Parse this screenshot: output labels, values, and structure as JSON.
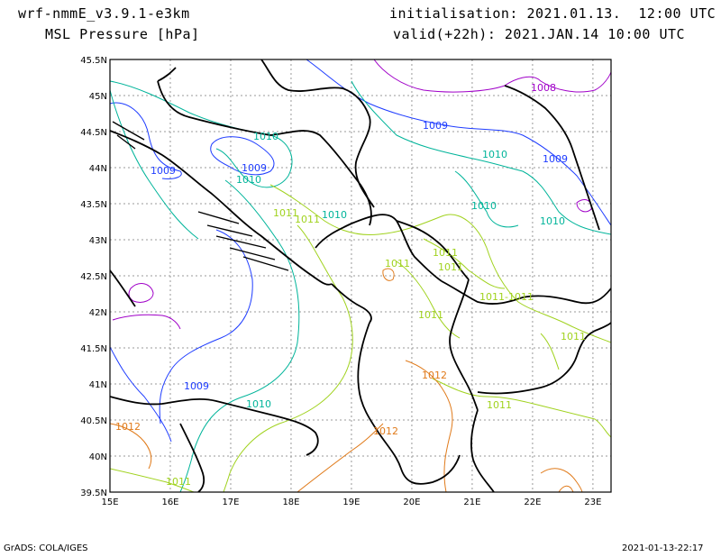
{
  "header": {
    "model": "wrf-nmmE_v3.9.1-e3km",
    "variable": "MSL Pressure [hPa]",
    "init": "initialisation: 2021.01.13.  12:00 UTC",
    "valid": "valid(+22h): 2021.JAN.14 10:00 UTC"
  },
  "footer": {
    "left": "GrADS: COLA/IGES",
    "right": "2021-01-13-22:17"
  },
  "axes": {
    "x_ticks": [
      "15E",
      "16E",
      "17E",
      "18E",
      "19E",
      "20E",
      "21E",
      "22E",
      "23E"
    ],
    "y_ticks": [
      "45.5N",
      "45N",
      "44.5N",
      "44N",
      "43.5N",
      "43N",
      "42.5N",
      "42N",
      "41.5N",
      "41N",
      "40.5N",
      "40N",
      "39.5N"
    ],
    "lon_range": [
      15,
      23.3
    ],
    "lat_range": [
      39.5,
      45.5
    ],
    "grid": true
  },
  "colors": {
    "c1008": "#a000c8",
    "c1009": "#1e3cff",
    "c1010": "#00b49a",
    "c1011": "#a0d21e",
    "c1012": "#e07a1a",
    "border": "#000000"
  },
  "contour_labels": [
    {
      "text": "1008",
      "color": "c1008"
    },
    {
      "text": "1009",
      "color": "c1009"
    },
    {
      "text": "1009",
      "color": "c1009"
    },
    {
      "text": "1009",
      "color": "c1009"
    },
    {
      "text": "1009",
      "color": "c1009"
    },
    {
      "text": "1009",
      "color": "c1009"
    },
    {
      "text": "1010",
      "color": "c1010"
    },
    {
      "text": "1010",
      "color": "c1010"
    },
    {
      "text": "1010",
      "color": "c1010"
    },
    {
      "text": "1010",
      "color": "c1010"
    },
    {
      "text": "1010",
      "color": "c1010"
    },
    {
      "text": "1010",
      "color": "c1010"
    },
    {
      "text": "1010",
      "color": "c1010"
    },
    {
      "text": "1011",
      "color": "c1011"
    },
    {
      "text": "1011",
      "color": "c1011"
    },
    {
      "text": "1011",
      "color": "c1011"
    },
    {
      "text": "1011",
      "color": "c1011"
    },
    {
      "text": "1011-1011",
      "color": "c1011"
    },
    {
      "text": "1011",
      "color": "c1011"
    },
    {
      "text": "1011",
      "color": "c1011"
    },
    {
      "text": "1011",
      "color": "c1011"
    },
    {
      "text": "1011",
      "color": "c1011"
    },
    {
      "text": "1011",
      "color": "c1011"
    },
    {
      "text": "1012",
      "color": "c1012"
    },
    {
      "text": "1012",
      "color": "c1012"
    },
    {
      "text": "1012",
      "color": "c1012"
    }
  ]
}
